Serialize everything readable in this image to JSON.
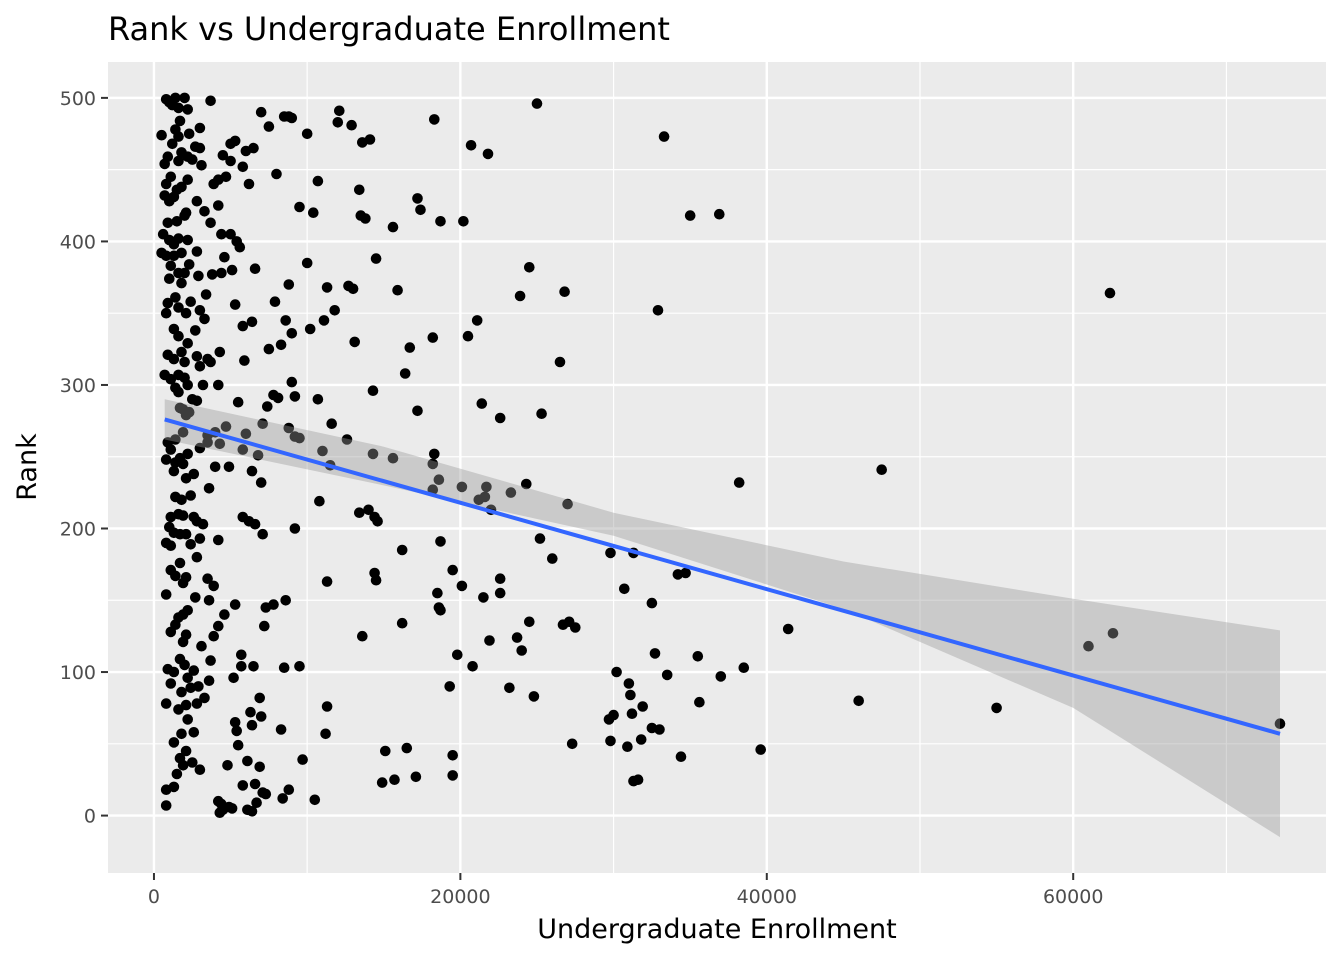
{
  "chart_data": {
    "type": "scatter",
    "title": "Rank vs Undergraduate Enrollment",
    "xlabel": "Undergraduate Enrollment",
    "ylabel": "Rank",
    "xlim": [
      -3000,
      76500
    ],
    "ylim": [
      -40,
      525
    ],
    "x_ticks": [
      0,
      20000,
      40000,
      60000
    ],
    "x_tick_labels": [
      "0",
      "20000",
      "40000",
      "60000"
    ],
    "x_minor_ticks": [
      10000,
      30000,
      50000,
      70000
    ],
    "y_ticks": [
      0,
      100,
      200,
      300,
      400,
      500
    ],
    "y_tick_labels": [
      "0",
      "100",
      "200",
      "300",
      "400",
      "500"
    ],
    "y_minor_ticks": [
      50,
      150,
      250,
      350,
      450
    ],
    "grid": true,
    "background": "#ebebeb",
    "grid_color": "#ffffff",
    "point_color": "#000000",
    "fit_line_color": "#3366ff",
    "ribbon_color": "#999999",
    "fit_line": {
      "x": [
        700,
        73500
      ],
      "y": [
        276,
        57
      ]
    },
    "confidence_band": {
      "x": [
        700,
        15000,
        30000,
        45000,
        60000,
        73500
      ],
      "upper": [
        290,
        257,
        211,
        177,
        151,
        129
      ],
      "lower": [
        262,
        230,
        195,
        144,
        75,
        -15
      ]
    },
    "points": [
      [
        800,
        499
      ],
      [
        1000,
        497
      ],
      [
        1200,
        495
      ],
      [
        1400,
        500
      ],
      [
        1600,
        493
      ],
      [
        2000,
        500
      ],
      [
        3700,
        498
      ],
      [
        2200,
        492
      ],
      [
        1700,
        484
      ],
      [
        1400,
        478
      ],
      [
        1600,
        473
      ],
      [
        2300,
        475
      ],
      [
        3000,
        479
      ],
      [
        500,
        474
      ],
      [
        2700,
        466
      ],
      [
        1200,
        468
      ],
      [
        1800,
        462
      ],
      [
        2200,
        459
      ],
      [
        1600,
        456
      ],
      [
        900,
        459
      ],
      [
        700,
        454
      ],
      [
        2500,
        457
      ],
      [
        3100,
        453
      ],
      [
        3000,
        465
      ],
      [
        2200,
        443
      ],
      [
        1100,
        445
      ],
      [
        700,
        432
      ],
      [
        1000,
        428
      ],
      [
        800,
        440
      ],
      [
        1300,
        431
      ],
      [
        1800,
        438
      ],
      [
        1500,
        436
      ],
      [
        2800,
        428
      ],
      [
        2100,
        420
      ],
      [
        2000,
        418
      ],
      [
        1500,
        414
      ],
      [
        3300,
        421
      ],
      [
        900,
        413
      ],
      [
        600,
        405
      ],
      [
        1000,
        401
      ],
      [
        1300,
        398
      ],
      [
        1600,
        402
      ],
      [
        2200,
        401
      ],
      [
        800,
        390
      ],
      [
        500,
        392
      ],
      [
        1300,
        390
      ],
      [
        1800,
        392
      ],
      [
        2800,
        393
      ],
      [
        1100,
        383
      ],
      [
        1600,
        378
      ],
      [
        2300,
        384
      ],
      [
        1000,
        374
      ],
      [
        1800,
        371
      ],
      [
        2900,
        376
      ],
      [
        2000,
        378
      ],
      [
        1400,
        361
      ],
      [
        900,
        357
      ],
      [
        1600,
        354
      ],
      [
        2400,
        358
      ],
      [
        2100,
        350
      ],
      [
        3000,
        352
      ],
      [
        3300,
        346
      ],
      [
        800,
        350
      ],
      [
        1300,
        339
      ],
      [
        1600,
        334
      ],
      [
        2700,
        338
      ],
      [
        2200,
        329
      ],
      [
        1800,
        323
      ],
      [
        900,
        321
      ],
      [
        1300,
        318
      ],
      [
        2000,
        316
      ],
      [
        2800,
        320
      ],
      [
        3000,
        313
      ],
      [
        3500,
        318
      ],
      [
        1600,
        307
      ],
      [
        1100,
        304
      ],
      [
        2000,
        305
      ],
      [
        2200,
        300
      ],
      [
        1600,
        295
      ],
      [
        700,
        307
      ],
      [
        1400,
        298
      ],
      [
        2500,
        290
      ],
      [
        3200,
        300
      ],
      [
        1900,
        283
      ],
      [
        2100,
        279
      ],
      [
        1700,
        284
      ],
      [
        2300,
        281
      ],
      [
        2800,
        289
      ],
      [
        1900,
        267
      ],
      [
        1400,
        262
      ],
      [
        900,
        260
      ],
      [
        1100,
        255
      ],
      [
        1700,
        249
      ],
      [
        1400,
        246
      ],
      [
        800,
        248
      ],
      [
        2200,
        252
      ],
      [
        3000,
        256
      ],
      [
        3500,
        265
      ],
      [
        1900,
        245
      ],
      [
        1300,
        240
      ],
      [
        2100,
        235
      ],
      [
        2600,
        238
      ],
      [
        1800,
        220
      ],
      [
        1400,
        222
      ],
      [
        2400,
        223
      ],
      [
        1100,
        208
      ],
      [
        1600,
        210
      ],
      [
        1900,
        209
      ],
      [
        2600,
        208
      ],
      [
        3200,
        203
      ],
      [
        2800,
        205
      ],
      [
        1000,
        201
      ],
      [
        1300,
        197
      ],
      [
        1700,
        196
      ],
      [
        2100,
        196
      ],
      [
        1100,
        188
      ],
      [
        800,
        190
      ],
      [
        2400,
        189
      ],
      [
        3000,
        193
      ],
      [
        2800,
        180
      ],
      [
        1700,
        176
      ],
      [
        1100,
        171
      ],
      [
        1900,
        162
      ],
      [
        2100,
        166
      ],
      [
        1400,
        167
      ],
      [
        800,
        154
      ],
      [
        2700,
        152
      ],
      [
        2200,
        143
      ],
      [
        1900,
        140
      ],
      [
        1400,
        133
      ],
      [
        1600,
        138
      ],
      [
        1100,
        128
      ],
      [
        2100,
        126
      ],
      [
        1900,
        121
      ],
      [
        3100,
        118
      ],
      [
        1700,
        109
      ],
      [
        900,
        102
      ],
      [
        1300,
        100
      ],
      [
        2000,
        105
      ],
      [
        2600,
        101
      ],
      [
        2200,
        96
      ],
      [
        1100,
        92
      ],
      [
        1800,
        86
      ],
      [
        2900,
        90
      ],
      [
        2400,
        89
      ],
      [
        800,
        78
      ],
      [
        1600,
        74
      ],
      [
        2100,
        77
      ],
      [
        2800,
        78
      ],
      [
        3300,
        82
      ],
      [
        2200,
        67
      ],
      [
        1800,
        57
      ],
      [
        2600,
        58
      ],
      [
        1300,
        51
      ],
      [
        2100,
        45
      ],
      [
        1700,
        40
      ],
      [
        1900,
        35
      ],
      [
        2500,
        37
      ],
      [
        3000,
        32
      ],
      [
        1500,
        29
      ],
      [
        800,
        18
      ],
      [
        1300,
        20
      ],
      [
        800,
        7
      ],
      [
        4200,
        443
      ],
      [
        4700,
        445
      ],
      [
        5000,
        468
      ],
      [
        5300,
        470
      ],
      [
        6000,
        463
      ],
      [
        6500,
        465
      ],
      [
        7000,
        490
      ],
      [
        7500,
        480
      ],
      [
        8500,
        487
      ],
      [
        9000,
        486
      ],
      [
        10000,
        475
      ],
      [
        4500,
        460
      ],
      [
        5800,
        452
      ],
      [
        6200,
        440
      ],
      [
        5000,
        456
      ],
      [
        3900,
        440
      ],
      [
        4200,
        425
      ],
      [
        3700,
        413
      ],
      [
        4400,
        405
      ],
      [
        5000,
        405
      ],
      [
        5400,
        400
      ],
      [
        5600,
        396
      ],
      [
        4600,
        389
      ],
      [
        5100,
        380
      ],
      [
        4400,
        378
      ],
      [
        3800,
        377
      ],
      [
        6600,
        381
      ],
      [
        3400,
        363
      ],
      [
        5300,
        356
      ],
      [
        5800,
        341
      ],
      [
        6400,
        344
      ],
      [
        4300,
        323
      ],
      [
        3700,
        316
      ],
      [
        5900,
        317
      ],
      [
        7500,
        325
      ],
      [
        4200,
        300
      ],
      [
        5500,
        288
      ],
      [
        4000,
        267
      ],
      [
        4700,
        271
      ],
      [
        3500,
        260
      ],
      [
        4300,
        259
      ],
      [
        6000,
        266
      ],
      [
        5800,
        255
      ],
      [
        4900,
        243
      ],
      [
        4000,
        243
      ],
      [
        3600,
        228
      ],
      [
        6400,
        240
      ],
      [
        6800,
        251
      ],
      [
        7000,
        232
      ],
      [
        5800,
        208
      ],
      [
        6200,
        205
      ],
      [
        6600,
        203
      ],
      [
        4200,
        192
      ],
      [
        7100,
        196
      ],
      [
        3500,
        165
      ],
      [
        3900,
        160
      ],
      [
        3600,
        150
      ],
      [
        5300,
        147
      ],
      [
        4600,
        140
      ],
      [
        3900,
        125
      ],
      [
        4200,
        132
      ],
      [
        3700,
        108
      ],
      [
        5700,
        112
      ],
      [
        5700,
        104
      ],
      [
        6500,
        104
      ],
      [
        3600,
        94
      ],
      [
        5200,
        96
      ],
      [
        6900,
        82
      ],
      [
        7000,
        69
      ],
      [
        6300,
        72
      ],
      [
        5300,
        65
      ],
      [
        5400,
        59
      ],
      [
        6400,
        63
      ],
      [
        5500,
        49
      ],
      [
        6100,
        38
      ],
      [
        6900,
        34
      ],
      [
        4800,
        35
      ],
      [
        5800,
        21
      ],
      [
        6600,
        22
      ],
      [
        7100,
        16
      ],
      [
        7300,
        15
      ],
      [
        6700,
        9
      ],
      [
        4200,
        10
      ],
      [
        4400,
        8
      ],
      [
        4500,
        4
      ],
      [
        4300,
        2
      ],
      [
        4900,
        6
      ],
      [
        5100,
        5
      ],
      [
        6100,
        4
      ],
      [
        6400,
        3
      ],
      [
        7400,
        285
      ],
      [
        7100,
        273
      ],
      [
        7800,
        293
      ],
      [
        8100,
        291
      ],
      [
        8800,
        270
      ],
      [
        9200,
        264
      ],
      [
        9000,
        302
      ],
      [
        9200,
        292
      ],
      [
        8600,
        345
      ],
      [
        8300,
        328
      ],
      [
        7900,
        358
      ],
      [
        8000,
        447
      ],
      [
        8800,
        487
      ],
      [
        9500,
        424
      ],
      [
        8800,
        370
      ],
      [
        9000,
        336
      ],
      [
        10000,
        385
      ],
      [
        10400,
        420
      ],
      [
        10700,
        442
      ],
      [
        11300,
        368
      ],
      [
        10200,
        339
      ],
      [
        10700,
        290
      ],
      [
        9500,
        263
      ],
      [
        11000,
        254
      ],
      [
        11500,
        244
      ],
      [
        10800,
        219
      ],
      [
        12000,
        483
      ],
      [
        12100,
        491
      ],
      [
        12900,
        481
      ],
      [
        13600,
        469
      ],
      [
        14100,
        471
      ],
      [
        13400,
        436
      ],
      [
        13500,
        418
      ],
      [
        13800,
        416
      ],
      [
        14500,
        388
      ],
      [
        12700,
        369
      ],
      [
        13000,
        367
      ],
      [
        11800,
        352
      ],
      [
        11100,
        345
      ],
      [
        13100,
        330
      ],
      [
        11600,
        273
      ],
      [
        12600,
        262
      ],
      [
        14300,
        296
      ],
      [
        14300,
        252
      ],
      [
        13400,
        211
      ],
      [
        14000,
        213
      ],
      [
        14400,
        208
      ],
      [
        14600,
        205
      ],
      [
        14400,
        169
      ],
      [
        14500,
        164
      ],
      [
        11300,
        163
      ],
      [
        13600,
        125
      ],
      [
        9200,
        200
      ],
      [
        8600,
        150
      ],
      [
        8500,
        103
      ],
      [
        8300,
        60
      ],
      [
        7300,
        145
      ],
      [
        7800,
        147
      ],
      [
        9500,
        104
      ],
      [
        9700,
        39
      ],
      [
        10500,
        11
      ],
      [
        11200,
        57
      ],
      [
        11300,
        76
      ],
      [
        7200,
        132
      ],
      [
        8400,
        12
      ],
      [
        8800,
        18
      ],
      [
        15600,
        410
      ],
      [
        15900,
        366
      ],
      [
        15600,
        249
      ],
      [
        16200,
        185
      ],
      [
        16200,
        134
      ],
      [
        16700,
        326
      ],
      [
        16400,
        308
      ],
      [
        15100,
        45
      ],
      [
        14900,
        23
      ],
      [
        15700,
        25
      ],
      [
        16500,
        47
      ],
      [
        17200,
        430
      ],
      [
        17400,
        422
      ],
      [
        17200,
        282
      ],
      [
        18300,
        485
      ],
      [
        18200,
        333
      ],
      [
        18300,
        252
      ],
      [
        18200,
        245
      ],
      [
        18200,
        227
      ],
      [
        18700,
        414
      ],
      [
        18600,
        234
      ],
      [
        18700,
        191
      ],
      [
        18600,
        145
      ],
      [
        18700,
        143
      ],
      [
        18500,
        155
      ],
      [
        19500,
        171
      ],
      [
        19300,
        90
      ],
      [
        19500,
        42
      ],
      [
        19500,
        28
      ],
      [
        17100,
        27
      ],
      [
        19800,
        112
      ],
      [
        20100,
        229
      ],
      [
        20100,
        160
      ],
      [
        20200,
        414
      ],
      [
        20500,
        334
      ],
      [
        20700,
        467
      ],
      [
        20800,
        104
      ],
      [
        21100,
        345
      ],
      [
        21200,
        220
      ],
      [
        21400,
        287
      ],
      [
        21500,
        152
      ],
      [
        21600,
        222
      ],
      [
        21700,
        229
      ],
      [
        21800,
        461
      ],
      [
        22000,
        213
      ],
      [
        21900,
        122
      ],
      [
        22600,
        277
      ],
      [
        22600,
        165
      ],
      [
        22600,
        155
      ],
      [
        23200,
        89
      ],
      [
        23300,
        225
      ],
      [
        23700,
        124
      ],
      [
        23900,
        362
      ],
      [
        24000,
        115
      ],
      [
        24300,
        231
      ],
      [
        24500,
        382
      ],
      [
        24500,
        135
      ],
      [
        24800,
        83
      ],
      [
        25000,
        496
      ],
      [
        25200,
        193
      ],
      [
        25300,
        280
      ],
      [
        26000,
        179
      ],
      [
        26500,
        316
      ],
      [
        26700,
        133
      ],
      [
        26800,
        365
      ],
      [
        27000,
        217
      ],
      [
        27100,
        135
      ],
      [
        27300,
        50
      ],
      [
        27500,
        131
      ],
      [
        29700,
        67
      ],
      [
        29800,
        183
      ],
      [
        29800,
        52
      ],
      [
        30000,
        70
      ],
      [
        30200,
        100
      ],
      [
        30700,
        158
      ],
      [
        30900,
        48
      ],
      [
        31000,
        92
      ],
      [
        31100,
        84
      ],
      [
        31300,
        183
      ],
      [
        31200,
        71
      ],
      [
        31300,
        24
      ],
      [
        31600,
        25
      ],
      [
        31800,
        53
      ],
      [
        31900,
        76
      ],
      [
        32500,
        148
      ],
      [
        32500,
        61
      ],
      [
        32700,
        113
      ],
      [
        32900,
        352
      ],
      [
        33000,
        60
      ],
      [
        33300,
        473
      ],
      [
        33500,
        98
      ],
      [
        34200,
        168
      ],
      [
        34400,
        41
      ],
      [
        34700,
        169
      ],
      [
        35000,
        418
      ],
      [
        35500,
        111
      ],
      [
        35600,
        79
      ],
      [
        36900,
        419
      ],
      [
        37000,
        97
      ],
      [
        38200,
        232
      ],
      [
        38500,
        103
      ],
      [
        39600,
        46
      ],
      [
        41400,
        130
      ],
      [
        46000,
        80
      ],
      [
        47500,
        241
      ],
      [
        55000,
        75
      ],
      [
        61000,
        118
      ],
      [
        62400,
        364
      ],
      [
        62600,
        127
      ],
      [
        73500,
        64
      ]
    ]
  }
}
